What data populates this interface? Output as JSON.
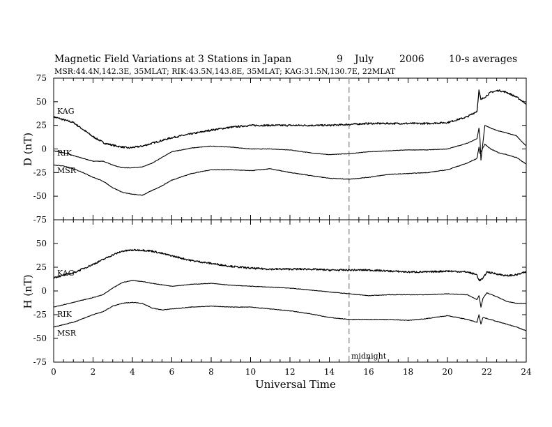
{
  "title": "Magnetic Field Variations at 3 Stations in Japan",
  "date_day": "9",
  "date_month": "July",
  "date_year": "2006",
  "averaging": "10-s averages",
  "stations_line": "MSR:44.4N,142.3E, 35MLAT;  RIK:43.5N,143.8E, 35MLAT;  KAG:31.5N,130.7E, 22MLAT",
  "midnight_label": "midnight",
  "chart_data": [
    {
      "type": "line",
      "panel": "top",
      "ylabel": "D (nT)",
      "xlabel": "",
      "xlim": [
        0,
        24
      ],
      "ylim": [
        -75,
        75
      ],
      "yticks": [
        75,
        50,
        25,
        0,
        -25,
        -50,
        -75
      ],
      "ytick_labels": [
        "75",
        "50",
        "25",
        "0",
        "-25",
        "-50",
        "-75"
      ],
      "vline_x": 15,
      "series": [
        {
          "name": "KAG",
          "x": [
            0,
            1,
            2,
            2.6,
            3.2,
            3.8,
            4.5,
            5,
            6,
            7,
            8,
            9,
            10,
            11,
            12,
            13,
            14,
            15,
            16,
            17,
            18,
            19,
            20,
            21,
            21.5,
            21.6,
            21.7,
            21.9,
            22.2,
            22.6,
            23,
            23.5,
            24
          ],
          "y": [
            34,
            28,
            13,
            6,
            3,
            1,
            3,
            6,
            12,
            16,
            20,
            23,
            25,
            25,
            25,
            25,
            25,
            26,
            27,
            27,
            27,
            27,
            28,
            34,
            40,
            62,
            52,
            55,
            60,
            62,
            60,
            55,
            48
          ],
          "noise": 0.9
        },
        {
          "name": "RIK",
          "x": [
            0,
            0.5,
            1,
            1.5,
            2,
            2.5,
            3,
            3.5,
            4,
            4.5,
            5,
            5.5,
            6,
            7,
            8,
            9,
            10,
            11,
            12,
            13,
            14,
            15,
            16,
            17,
            18,
            19,
            20,
            21,
            21.5,
            21.6,
            21.65,
            21.7,
            21.9,
            22.2,
            22.6,
            23,
            23.5,
            24
          ],
          "y": [
            -2,
            -4,
            -7,
            -10,
            -13,
            -13,
            -17,
            -20,
            -20,
            -19,
            -15,
            -9,
            -3,
            1,
            3,
            2,
            0,
            0,
            -1,
            -4,
            -6,
            -5,
            -3,
            -2,
            -1,
            -1,
            0,
            6,
            11,
            22,
            12,
            -12,
            25,
            22,
            19,
            17,
            14,
            3
          ],
          "noise": 0.25
        },
        {
          "name": "MSR",
          "x": [
            0,
            0.5,
            1,
            1.5,
            2,
            2.5,
            3,
            3.5,
            4,
            4.5,
            5,
            5.5,
            6,
            7,
            8,
            9,
            10,
            11,
            12,
            13,
            14,
            15,
            16,
            17,
            18,
            19,
            20,
            21,
            21.5,
            21.6,
            21.65,
            21.7,
            21.9,
            22.2,
            22.6,
            23,
            23.5,
            24
          ],
          "y": [
            -17,
            -18,
            -21,
            -25,
            -30,
            -34,
            -41,
            -46,
            -48,
            -49,
            -44,
            -39,
            -33,
            -26,
            -22,
            -22,
            -23,
            -21,
            -25,
            -28,
            -31,
            -32,
            -30,
            -27,
            -26,
            -25,
            -22,
            -15,
            -10,
            2,
            -5,
            -3,
            5,
            0,
            -4,
            -6,
            -9,
            -16
          ],
          "noise": 0.3
        }
      ]
    },
    {
      "type": "line",
      "panel": "bottom",
      "ylabel": "H (nT)",
      "xlabel": "Universal Time",
      "xlim": [
        0,
        24
      ],
      "ylim": [
        -75,
        75
      ],
      "yticks": [
        50,
        25,
        0,
        -25,
        -50,
        -75
      ],
      "ytick_labels": [
        "50",
        "25",
        "0",
        "-25",
        "-50",
        "-75"
      ],
      "xticks": [
        0,
        2,
        4,
        6,
        8,
        10,
        12,
        14,
        16,
        18,
        20,
        22,
        24
      ],
      "xtick_labels": [
        "0",
        "2",
        "4",
        "6",
        "8",
        "10",
        "12",
        "14",
        "16",
        "18",
        "20",
        "22",
        "24"
      ],
      "vline_x": 15,
      "series": [
        {
          "name": "KAG",
          "x": [
            0,
            1,
            2,
            3,
            3.5,
            4,
            4.5,
            5,
            6,
            7,
            8,
            9,
            10,
            11,
            12,
            13,
            14,
            15,
            16,
            17,
            18,
            19,
            20,
            21,
            21.5,
            21.6,
            21.8,
            22,
            22.5,
            23,
            23.5,
            24
          ],
          "y": [
            14,
            19,
            28,
            38,
            42,
            43,
            43,
            42,
            37,
            32,
            29,
            26,
            24,
            23,
            23,
            23,
            22,
            22,
            22,
            21,
            20,
            20,
            21,
            20,
            17,
            11,
            13,
            20,
            18,
            16,
            17,
            20
          ],
          "noise": 0.9
        },
        {
          "name": "RIK",
          "x": [
            0,
            1,
            2,
            2.5,
            3,
            3.5,
            4,
            4.5,
            5,
            6,
            7,
            8,
            9,
            10,
            11,
            12,
            13,
            14,
            15,
            16,
            17,
            18,
            19,
            20,
            21,
            21.5,
            21.6,
            21.7,
            21.8,
            22,
            22.5,
            23,
            23.5,
            24
          ],
          "y": [
            -17,
            -12,
            -7,
            -4,
            3,
            9,
            11,
            10,
            8,
            5,
            7,
            8,
            6,
            5,
            4,
            3,
            1,
            -1,
            -3,
            -5,
            -4,
            -4,
            -4,
            -3,
            -4,
            -9,
            -5,
            -17,
            -8,
            -2,
            -6,
            -11,
            -13,
            -13
          ],
          "noise": 0.25
        },
        {
          "name": "MSR",
          "x": [
            0,
            1,
            2,
            2.5,
            3,
            3.5,
            4,
            4.5,
            5,
            5.5,
            6,
            7,
            8,
            9,
            10,
            11,
            12,
            13,
            14,
            15,
            16,
            17,
            18,
            19,
            20,
            21,
            21.5,
            21.6,
            21.7,
            21.8,
            22,
            22.5,
            23,
            23.5,
            24
          ],
          "y": [
            -38,
            -33,
            -25,
            -22,
            -16,
            -13,
            -12,
            -13,
            -18,
            -20,
            -19,
            -17,
            -16,
            -17,
            -17,
            -19,
            -21,
            -24,
            -28,
            -30,
            -30,
            -30,
            -31,
            -29,
            -26,
            -30,
            -33,
            -25,
            -35,
            -28,
            -29,
            -32,
            -35,
            -38,
            -42
          ],
          "noise": 0.3
        }
      ]
    }
  ]
}
